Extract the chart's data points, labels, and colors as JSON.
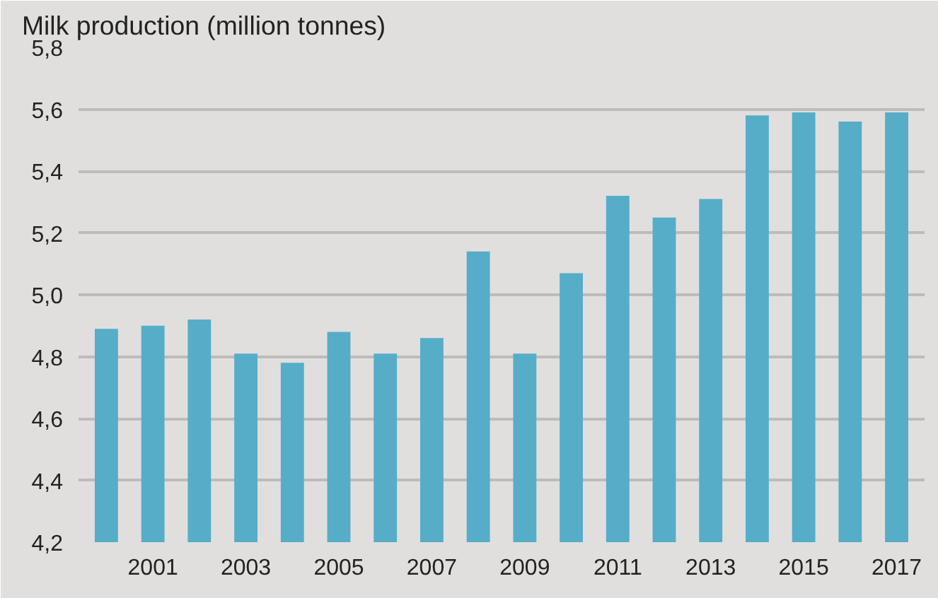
{
  "chart_data": {
    "type": "bar",
    "ylabel": "Milk production (million tonnes)",
    "categories": [
      null,
      "2001",
      null,
      "2003",
      null,
      "2005",
      null,
      "2007",
      null,
      "2009",
      null,
      "2011",
      null,
      "2013",
      null,
      "2015",
      null,
      "2017"
    ],
    "values": [
      4.89,
      4.9,
      4.92,
      4.81,
      4.78,
      4.88,
      4.81,
      4.86,
      5.14,
      4.81,
      5.07,
      5.32,
      5.25,
      5.31,
      5.58,
      5.59,
      5.56,
      5.59
    ],
    "color": "#56adc8",
    "ylim": [
      4.2,
      5.8
    ],
    "yticks": [
      {
        "value": 4.2,
        "label": "4,2"
      },
      {
        "value": 4.4,
        "label": "4,4"
      },
      {
        "value": 4.6,
        "label": "4,6"
      },
      {
        "value": 4.8,
        "label": "4,8"
      },
      {
        "value": 5.0,
        "label": "5,0"
      },
      {
        "value": 5.2,
        "label": "5,2"
      },
      {
        "value": 5.4,
        "label": "5,4"
      },
      {
        "value": 5.6,
        "label": "5,6"
      },
      {
        "value": 5.8,
        "label": "5,8"
      }
    ],
    "grid": "y"
  }
}
